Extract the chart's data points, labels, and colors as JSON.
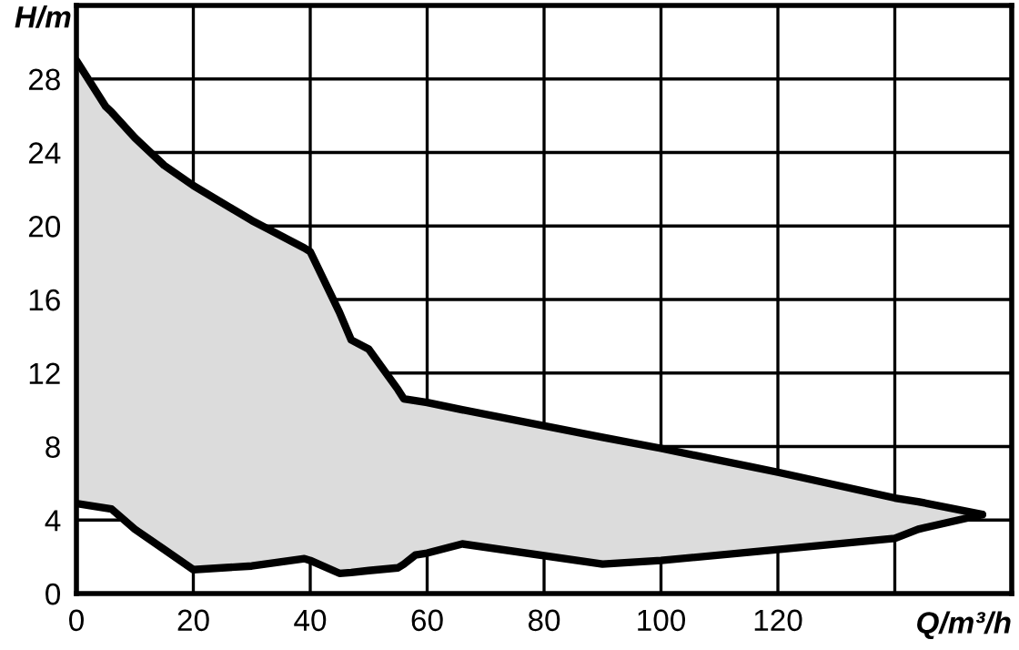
{
  "chart_data": {
    "type": "line",
    "xlabel": "Q/m³/h",
    "ylabel": "H/m",
    "series": [
      {
        "color": "#000000",
        "x": [
          0,
          5,
          6,
          10,
          15,
          20,
          30,
          39,
          40,
          45,
          47,
          50,
          55,
          56,
          58,
          60,
          66,
          90,
          100,
          120,
          140,
          144,
          155
        ],
        "values": [
          29.0,
          26.5,
          26.2,
          24.8,
          23.3,
          22.2,
          20.3,
          18.8,
          18.6,
          15.3,
          13.8,
          13.3,
          11.1,
          10.6,
          10.5,
          10.4,
          10.0,
          8.5,
          7.9,
          6.6,
          5.2,
          5.0,
          4.3
        ],
        "upper": [
          29.0,
          26.5,
          26.2,
          24.8,
          23.3,
          22.2,
          20.3,
          18.8,
          18.6,
          15.3,
          13.8,
          13.3,
          11.1,
          10.6,
          10.5,
          10.4,
          10.0,
          8.5,
          7.9,
          6.6,
          5.2,
          5.0,
          4.3
        ],
        "lower": [
          4.9,
          4.65,
          4.6,
          3.5,
          2.4,
          1.3,
          1.5,
          1.9,
          1.8,
          1.1,
          1.15,
          1.25,
          1.4,
          1.6,
          2.1,
          2.2,
          2.7,
          1.6,
          1.8,
          2.4,
          3.0,
          3.5,
          4.3
        ]
      },
      {
        "color": "#000000",
        "x": [
          0,
          5,
          6,
          10,
          15,
          20,
          30,
          39,
          40,
          45,
          47,
          50,
          55,
          56,
          58,
          60,
          66,
          90,
          100,
          120,
          140,
          144,
          155
        ],
        "values": [
          4.9,
          4.65,
          4.6,
          3.5,
          2.4,
          1.3,
          1.5,
          1.9,
          1.8,
          1.1,
          1.15,
          1.25,
          1.4,
          1.6,
          2.1,
          2.2,
          2.7,
          1.6,
          1.8,
          2.4,
          3.0,
          3.5,
          4.3
        ]
      }
    ],
    "xlim": [
      0,
      160
    ],
    "xticks": [
      0,
      20,
      40,
      60,
      80,
      100,
      120,
      {
        "value": 140,
        "label": null
      }
    ],
    "ylim": [
      0,
      32
    ],
    "yticks": [
      0,
      4,
      8,
      12,
      16,
      20,
      24,
      28
    ],
    "grid": true
  }
}
